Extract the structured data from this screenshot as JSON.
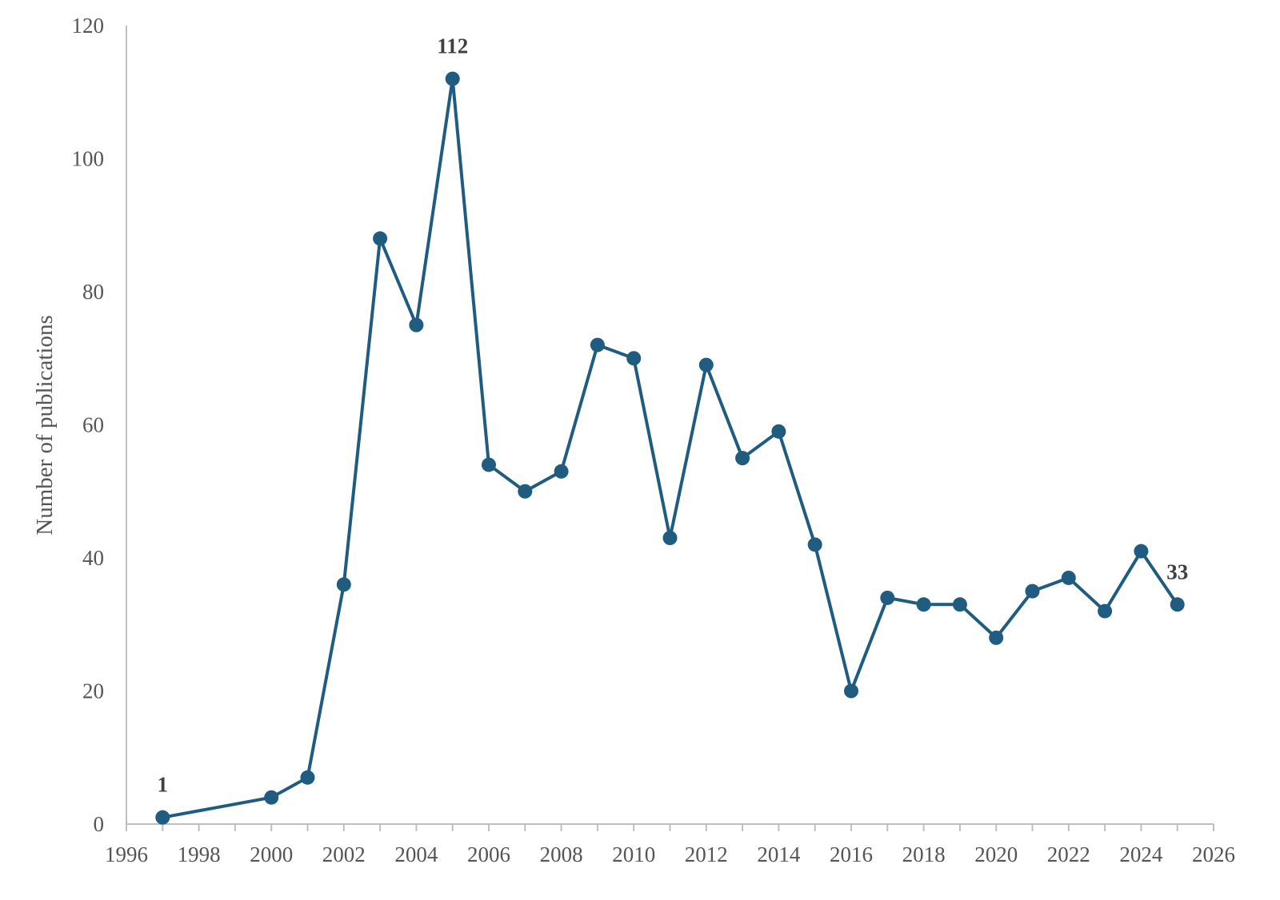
{
  "chart_data": {
    "type": "line",
    "title": "",
    "xlabel": "",
    "ylabel": "Number  of publications",
    "xlim": [
      1996,
      2026
    ],
    "ylim": [
      0,
      120
    ],
    "x_ticks": [
      "1996",
      "1998",
      "2000",
      "2002",
      "2004",
      "2006",
      "2008",
      "2010",
      "2012",
      "2014",
      "2016",
      "2018",
      "2020",
      "2022",
      "2024",
      "2026"
    ],
    "y_ticks": [
      "0",
      "20",
      "40",
      "60",
      "80",
      "100",
      "120"
    ],
    "grid": false,
    "legend": "none",
    "color": "#1f5c80",
    "series": [
      {
        "x": [
          1997,
          2000,
          2001,
          2002,
          2003,
          2004,
          2005,
          2006,
          2007,
          2008,
          2009,
          2010,
          2011,
          2012,
          2013,
          2014,
          2015,
          2016,
          2017,
          2018,
          2019,
          2020,
          2021,
          2022,
          2023,
          2024,
          2025
        ],
        "y": [
          1,
          4,
          7,
          36,
          88,
          75,
          112,
          54,
          50,
          53,
          72,
          70,
          43,
          69,
          55,
          59,
          42,
          20,
          34,
          33,
          33,
          28,
          35,
          37,
          32,
          41,
          33
        ]
      }
    ],
    "data_labels": [
      {
        "x": 1997,
        "text": "1"
      },
      {
        "x": 2005,
        "text": "112"
      },
      {
        "x": 2025,
        "text": "33"
      }
    ]
  }
}
